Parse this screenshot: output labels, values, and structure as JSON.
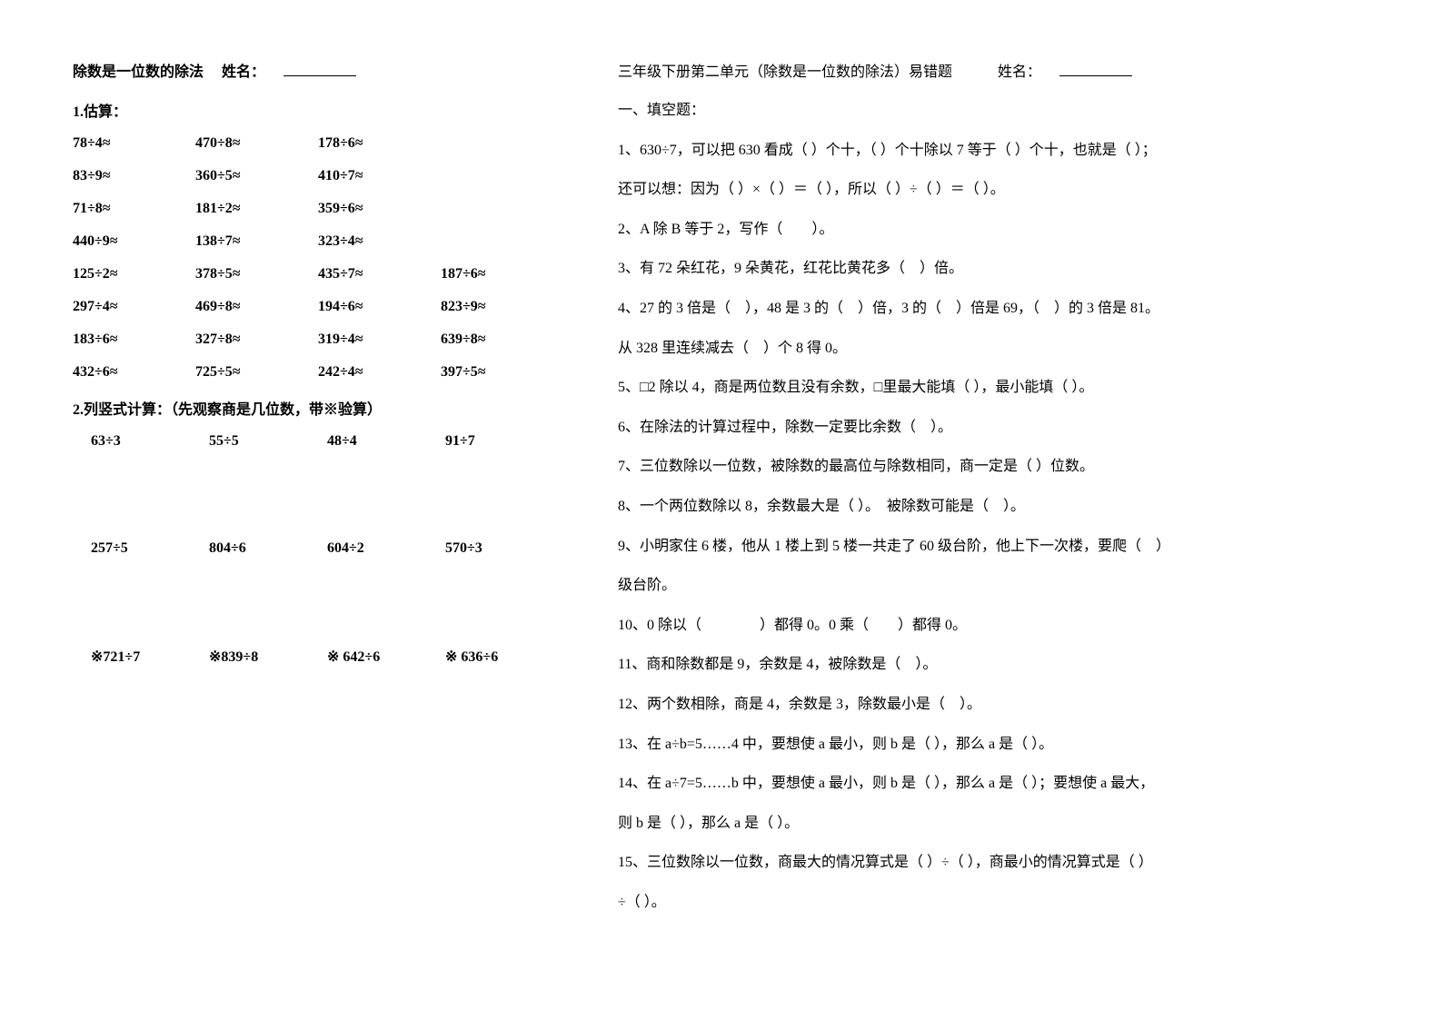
{
  "left": {
    "title": "除数是一位数的除法",
    "name_label": "姓名：",
    "section1": "1.估算：",
    "est_rows": [
      [
        "78÷4≈",
        "470÷8≈",
        "178÷6≈",
        ""
      ],
      [
        "83÷9≈",
        "360÷5≈",
        "410÷7≈",
        ""
      ],
      [
        "71÷8≈",
        "181÷2≈",
        "359÷6≈",
        ""
      ],
      [
        "440÷9≈",
        "138÷7≈",
        "323÷4≈",
        ""
      ],
      [
        "125÷2≈",
        "378÷5≈",
        "435÷7≈",
        "187÷6≈"
      ],
      [
        "297÷4≈",
        "469÷8≈",
        "194÷6≈",
        "823÷9≈"
      ],
      [
        "183÷6≈",
        "327÷8≈",
        "319÷4≈",
        "639÷8≈"
      ],
      [
        "432÷6≈",
        "725÷5≈",
        "242÷4≈",
        "397÷5≈"
      ]
    ],
    "section2": "2.列竖式计算：（先观察商是几位数，带※验算）",
    "calc_rows": [
      [
        "63÷3",
        "55÷5",
        "48÷4",
        "91÷7"
      ],
      [
        "257÷5",
        "804÷6",
        "604÷2",
        "570÷3"
      ],
      [
        "※721÷7",
        "※839÷8",
        "※ 642÷6",
        "※ 636÷6"
      ]
    ]
  },
  "right": {
    "title": "三年级下册第二单元（除数是一位数的除法）易错题",
    "name_label": "姓名：",
    "section": "一、填空题：",
    "lines": [
      "1、630÷7，可以把 630 看成（ ）个十，（ ）个十除以 7 等于（ ）个十，也就是（ ）；",
      "还可以想：因为（ ）×（ ）＝（ ），所以（ ）÷（ ）＝（ ）。",
      "2、A 除 B 等于 2，写作（　　）。",
      "3、有 72 朵红花，9 朵黄花，红花比黄花多（　）倍。",
      "4、27 的 3 倍是（　），48 是 3 的（　）倍，3 的（　）倍是 69，（　）的 3 倍是 81。",
      "从 328 里连续减去（　）个 8 得 0。",
      "5、□2 除以 4，商是两位数且没有余数，□里最大能填（ ），最小能填（ ）。",
      "6、在除法的计算过程中，除数一定要比余数（　）。",
      "7、三位数除以一位数，被除数的最高位与除数相同，商一定是（ ）位数。",
      "8、一个两位数除以 8，余数最大是（ ）。　被除数可能是（　）。",
      "9、小明家住 6 楼，他从 1 楼上到 5 楼一共走了 60 级台阶，他上下一次楼，要爬（　）",
      "级台阶。",
      "10、0 除以（　　　　）都得 0。0 乘（　　）都得 0。",
      "11、商和除数都是 9，余数是 4，被除数是（　）。",
      "12、两个数相除，商是 4，余数是 3，除数最小是（　）。",
      "13、在 a÷b=5……4 中，要想使 a 最小，则 b 是（ ），那么 a 是（ ）。",
      "14、在 a÷7=5……b 中，要想使 a 最小，则 b 是（ ），那么 a 是（ ）；要想使 a 最大，",
      "则 b 是（ ），那么 a 是（ ）。",
      "15、三位数除以一位数，商最大的情况算式是（ ）÷（ ），商最小的情况算式是（ ）",
      "÷（ ）。"
    ]
  }
}
